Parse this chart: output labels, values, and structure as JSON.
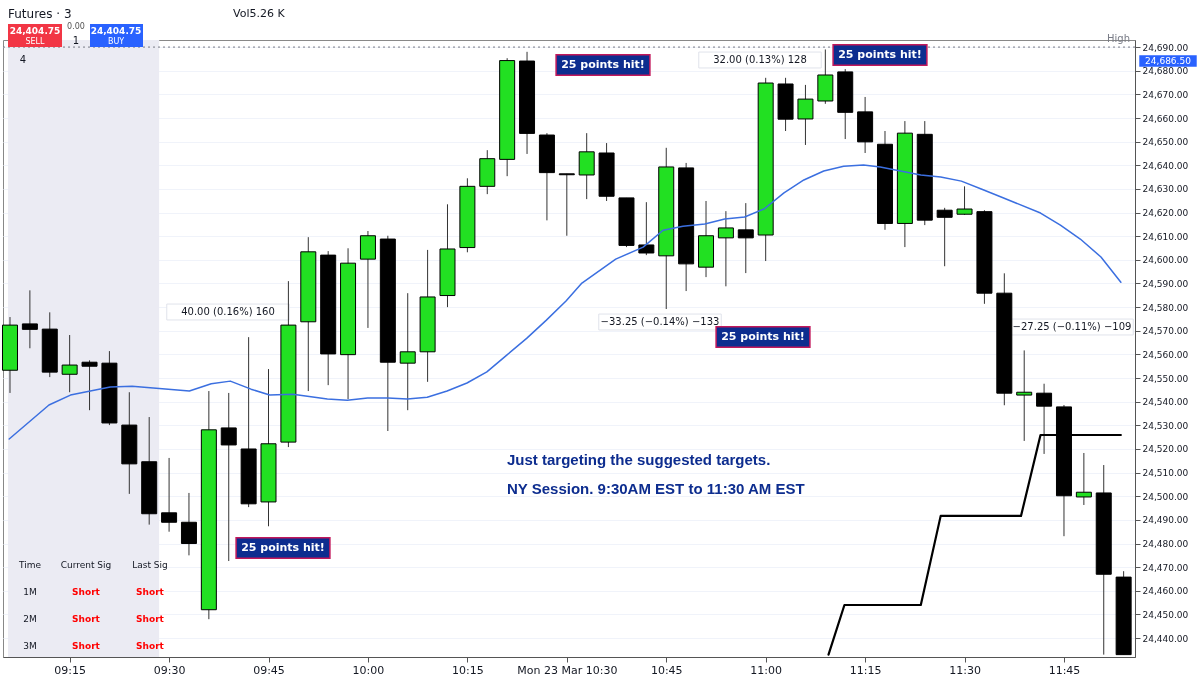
{
  "chart_data": {
    "type": "candlestick",
    "title": "Futures · 3",
    "x": [
      9.1,
      9.15,
      9.2,
      9.25,
      9.3,
      9.35,
      9.4,
      9.45,
      9.5,
      9.55,
      9.6,
      9.65,
      9.7,
      9.75,
      9.8,
      9.85,
      9.9,
      9.95,
      10.0,
      10.05,
      10.1,
      10.15,
      10.2,
      10.25,
      10.3,
      10.35,
      10.4,
      10.45,
      10.5,
      10.55,
      10.6,
      10.65,
      10.7,
      10.75,
      10.8,
      10.85,
      10.9,
      10.95,
      11.0,
      11.05,
      11.1,
      11.15,
      11.2,
      11.25,
      11.3,
      11.35,
      11.4,
      11.45,
      11.5,
      11.55,
      11.6,
      11.65,
      11.7,
      11.75,
      11.8,
      11.85,
      11.9
    ],
    "ohlc": [
      [
        24553.3,
        24575.8,
        24543.7,
        24572.4
      ],
      [
        24572.9,
        24587.1,
        24562.6,
        24570.6
      ],
      [
        24570.7,
        24577.8,
        24550.4,
        24552.5
      ],
      [
        24551.6,
        24568.2,
        24544.0,
        24555.5
      ],
      [
        24556.7,
        24557.5,
        24536.4,
        24555.0
      ],
      [
        24556.3,
        24561.4,
        24530.1,
        24531.0
      ],
      [
        24530.1,
        24544.0,
        24501.0,
        24513.7
      ],
      [
        24514.6,
        24533.5,
        24488.0,
        24492.6
      ],
      [
        24493.0,
        24516.2,
        24485.0,
        24489.0
      ],
      [
        24489.0,
        24501.4,
        24475.0,
        24480.0
      ],
      [
        24452.0,
        24544.5,
        24448.0,
        24528.1
      ],
      [
        24528.9,
        24543.7,
        24472.6,
        24521.7
      ],
      [
        24520.0,
        24567.3,
        24495.4,
        24496.8
      ],
      [
        24497.6,
        24553.8,
        24487.3,
        24522.2
      ],
      [
        24522.9,
        24591.0,
        24520.8,
        24572.4
      ],
      [
        24573.8,
        24609.6,
        24544.5,
        24603.4
      ],
      [
        24602.0,
        24603.7,
        24547.0,
        24560.2
      ],
      [
        24559.9,
        24604.9,
        24541.1,
        24598.6
      ],
      [
        24600.3,
        24612.2,
        24571.2,
        24610.2
      ],
      [
        24608.8,
        24610.2,
        24527.6,
        24556.7
      ],
      [
        24556.3,
        24585.9,
        24536.4,
        24561.1
      ],
      [
        24561.1,
        24604.2,
        24548.4,
        24584.3
      ],
      [
        24584.9,
        24623.5,
        24580.0,
        24604.6
      ],
      [
        24605.2,
        24634.5,
        24603.2,
        24631.1
      ],
      [
        24631.1,
        24646.4,
        24627.8,
        24642.8
      ],
      [
        24642.5,
        24685.3,
        24635.4,
        24684.3
      ],
      [
        24684.1,
        24688.0,
        24644.8,
        24653.5
      ],
      [
        24652.8,
        24653.6,
        24616.7,
        24636.9
      ],
      [
        24636.4,
        24636.4,
        24610.2,
        24636.0
      ],
      [
        24635.9,
        24653.6,
        24625.7,
        24645.7
      ],
      [
        24645.2,
        24649.4,
        24624.9,
        24626.9
      ],
      [
        24626.2,
        24626.2,
        24605.4,
        24606.1
      ],
      [
        24606.3,
        24624.4,
        24602.0,
        24602.9
      ],
      [
        24601.7,
        24647.4,
        24579.2,
        24639.3
      ],
      [
        24638.9,
        24641.0,
        24586.8,
        24598.3
      ],
      [
        24596.9,
        24624.9,
        24592.7,
        24610.2
      ],
      [
        24609.3,
        24620.6,
        24588.8,
        24613.5
      ],
      [
        24612.7,
        24624.0,
        24594.4,
        24609.3
      ],
      [
        24610.5,
        24677.0,
        24599.5,
        24674.8
      ],
      [
        24674.4,
        24677.0,
        24654.5,
        24659.5
      ],
      [
        24659.6,
        24674.0,
        24648.6,
        24668.0
      ],
      [
        24667.2,
        24689.0,
        24666.0,
        24678.2
      ],
      [
        24679.5,
        24680.7,
        24651.1,
        24662.4
      ],
      [
        24662.6,
        24668.9,
        24645.2,
        24649.9
      ],
      [
        24648.9,
        24654.5,
        24612.7,
        24615.4
      ],
      [
        24615.4,
        24658.7,
        24605.4,
        24653.6
      ],
      [
        24653.1,
        24658.7,
        24614.7,
        24616.8
      ],
      [
        24621.0,
        24622.0,
        24597.3,
        24618.0
      ],
      [
        24619.3,
        24631.1,
        24619.0,
        24621.5
      ],
      [
        24620.4,
        24621.0,
        24581.4,
        24585.9
      ],
      [
        24585.9,
        24594.3,
        24538.5,
        24543.6
      ],
      [
        24542.8,
        24561.7,
        24523.4,
        24544.0
      ],
      [
        24543.6,
        24547.6,
        24517.9,
        24538.1
      ],
      [
        24537.8,
        24538.6,
        24483.1,
        24500.2
      ],
      [
        24499.7,
        24518.3,
        24496.3,
        24501.7
      ],
      [
        24501.4,
        24513.2,
        24433.0,
        24467.0
      ],
      [
        24465.8,
        24468.3,
        24433.0,
        24433.0
      ]
    ],
    "colors": [
      "#22e022",
      "#000000",
      "#000000",
      "#22e022",
      "#000000",
      "#000000",
      "#000000",
      "#000000",
      "#000000",
      "#000000",
      "#22e022",
      "#000000",
      "#000000",
      "#22e022",
      "#22e022",
      "#22e022",
      "#000000",
      "#22e022",
      "#22e022",
      "#000000",
      "#22e022",
      "#22e022",
      "#22e022",
      "#22e022",
      "#22e022",
      "#22e022",
      "#000000",
      "#000000",
      "#000000",
      "#22e022",
      "#000000",
      "#000000",
      "#000000",
      "#22e022",
      "#000000",
      "#22e022",
      "#22e022",
      "#000000",
      "#22e022",
      "#000000",
      "#22e022",
      "#22e022",
      "#000000",
      "#000000",
      "#000000",
      "#22e022",
      "#000000",
      "#000000",
      "#22e022",
      "#000000",
      "#000000",
      "#22e022",
      "#000000",
      "#000000",
      "#22e022",
      "#000000",
      "#000000"
    ],
    "series": [
      {
        "type": "line",
        "color": "#3b6fe0",
        "x": [
          9.098,
          9.198,
          9.252,
          9.352,
          9.407,
          9.551,
          9.606,
          9.654,
          9.706,
          9.753,
          9.811,
          9.898,
          9.948,
          9.999,
          10.05,
          10.099,
          10.149,
          10.199,
          10.249,
          10.299,
          10.349,
          10.399,
          10.448,
          10.498,
          10.538,
          10.623,
          10.692,
          10.742,
          10.792,
          10.847,
          10.897,
          10.947,
          10.996,
          11.046,
          11.096,
          11.146,
          11.196,
          11.246,
          11.288,
          11.39,
          11.44,
          11.492,
          11.542,
          11.592,
          11.691,
          11.741,
          11.791,
          11.843,
          11.893
        ],
        "values": [
          24524.2,
          24538.6,
          24542.8,
          24546.2,
          24546.5,
          24544.5,
          24547.6,
          24548.7,
          24545.3,
          24542.8,
          24543.1,
          24541.1,
          24540.6,
          24541.6,
          24541.6,
          24541.1,
          24541.9,
          24544.5,
          24547.9,
          24552.6,
          24559.7,
          24566.8,
          24574.4,
          24582.6,
          24590.2,
          24600.3,
          24605.4,
          24612.5,
          24614.2,
          24615.2,
          24617.3,
          24618.1,
          24621.5,
          24628.3,
          24633.8,
          24637.6,
          24639.6,
          24640.1,
          24639.3,
          24635.9,
          24635.0,
          24633.3,
          24630.0,
          24626.6,
          24619.8,
          24614.7,
          24608.8,
          24601.2,
          24590.5
        ]
      },
      {
        "type": "line",
        "color": "#000000",
        "x": [
          11.158,
          11.198,
          11.39,
          11.44,
          11.642,
          11.691,
          11.893
        ],
        "values": [
          24433,
          24454.0,
          24454.0,
          24491.7,
          24491.7,
          24525.9,
          24525.9
        ]
      }
    ],
    "xlim": [
      9.095,
      11.916
    ],
    "ylim": [
      24432,
      24693
    ],
    "xticks": [
      {
        "value": 9.25,
        "label": "09:15"
      },
      {
        "value": 9.5,
        "label": "09:30"
      },
      {
        "value": 9.75,
        "label": "09:45"
      },
      {
        "value": 10.0,
        "label": "10:00"
      },
      {
        "value": 10.25,
        "label": "10:15"
      },
      {
        "value": 10.5,
        "label": "Mon 23 Mar  10:30"
      },
      {
        "value": 10.75,
        "label": "10:45"
      },
      {
        "value": 11.0,
        "label": "11:00"
      },
      {
        "value": 11.25,
        "label": "11:15"
      },
      {
        "value": 11.5,
        "label": "11:30"
      },
      {
        "value": 11.75,
        "label": "11:45"
      }
    ],
    "yticks": [
      {
        "value": 24440,
        "label": "24,440.00"
      },
      {
        "value": 24450,
        "label": "24,450.00"
      },
      {
        "value": 24460,
        "label": "24,460.00"
      },
      {
        "value": 24470,
        "label": "24,470.00"
      },
      {
        "value": 24480,
        "label": "24,480.00"
      },
      {
        "value": 24490,
        "label": "24,490.00"
      },
      {
        "value": 24500,
        "label": "24,500.00"
      },
      {
        "value": 24510,
        "label": "24,510.00"
      },
      {
        "value": 24520,
        "label": "24,520.00"
      },
      {
        "value": 24530,
        "label": "24,530.00"
      },
      {
        "value": 24540,
        "label": "24,540.00"
      },
      {
        "value": 24550,
        "label": "24,550.00"
      },
      {
        "value": 24560,
        "label": "24,560.00"
      },
      {
        "value": 24570,
        "label": "24,570.00"
      },
      {
        "value": 24580,
        "label": "24,580.00"
      },
      {
        "value": 24590,
        "label": "24,590.00"
      },
      {
        "value": 24600,
        "label": "24,600.00"
      },
      {
        "value": 24610,
        "label": "24,610.00"
      },
      {
        "value": 24620,
        "label": "24,620.00"
      },
      {
        "value": 24630,
        "label": "24,630.00"
      },
      {
        "value": 24640,
        "label": "24,640.00"
      },
      {
        "value": 24650,
        "label": "24,650.00"
      },
      {
        "value": 24660,
        "label": "24,660.00"
      },
      {
        "value": 24670,
        "label": "24,670.00"
      },
      {
        "value": 24680,
        "label": "24,680.00"
      },
      {
        "value": 24690,
        "label": "24,690.00"
      }
    ],
    "grid": "y",
    "ref_lines": [
      {
        "axis": "y",
        "value": 24690,
        "label": "High",
        "color": "#787b86",
        "line_style": "dotted"
      }
    ],
    "bands": [
      {
        "axis": "x",
        "from": 9.095,
        "to": 9.475,
        "color": "#ebebf3"
      }
    ],
    "annotations": [
      "24,404.75",
      "SELL",
      "0.00",
      "1",
      "24,404.75",
      "BUY",
      "4",
      "Vol5.26 K",
      "Just targeting the suggested targets.",
      "NY Session. 9:30AM EST to 11:30 AM EST",
      "Time",
      "Current Sig",
      "Last Sig",
      "1M",
      "Short",
      "Short",
      "2M",
      "Short",
      "Short",
      "3M",
      "Short",
      "Short",
      "24,686.50",
      "40.00 (0.16%) 160",
      "−33.25 (−0.14%) −133",
      "32.00 (0.13%) 128",
      "−27.25 (−0.11%) −109",
      "25 points hit!",
      "25 points hit!",
      "25 points hit!",
      "25 points hit!"
    ]
  }
}
